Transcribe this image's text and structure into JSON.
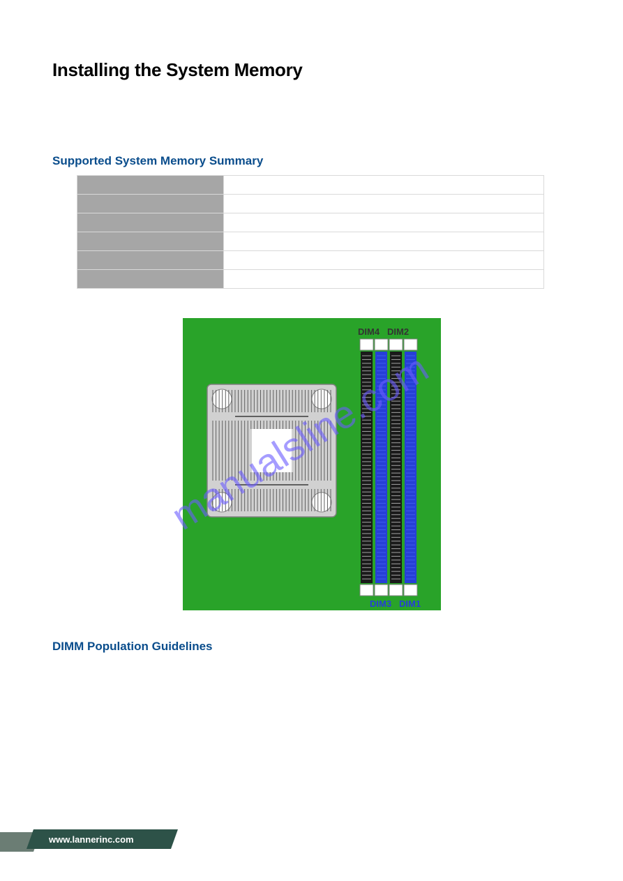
{
  "page": {
    "title": "Installing the System Memory"
  },
  "sections": {
    "summary_title": "Supported System Memory Summary",
    "guidelines_title": "DIMM Population Guidelines"
  },
  "title_colors": {
    "summary": "#0a4d8c",
    "guidelines": "#0a4d8c"
  },
  "summary_table": {
    "rows": [
      {
        "label": "",
        "value": ""
      },
      {
        "label": "",
        "value": ""
      },
      {
        "label": "",
        "value": ""
      },
      {
        "label": "",
        "value": ""
      },
      {
        "label": "",
        "value": ""
      },
      {
        "label": "",
        "value": ""
      }
    ],
    "label_bg": "#a6a6a6",
    "value_bg": "#ffffff",
    "border_color": "#d9d9d9"
  },
  "diagram": {
    "board_bg": "#29a329",
    "socket": {
      "fill": "#d1d1d1",
      "stroke": "#808080",
      "inner_fill": "#ffffff",
      "hole_fill": "#ffffff",
      "hole_stroke": "#808080",
      "line_color": "#606060"
    },
    "dimm": {
      "black_slot_fill": "#1a1a1a",
      "blue_slot_fill": "#263fd7",
      "pin_color": "#ffffff",
      "blue_pin_color": "#5070ff",
      "tab_fill": "#ffffff",
      "tab_stroke": "#808080"
    },
    "labels": {
      "top_left": "DIM4",
      "top_right": "DIM2",
      "bottom_left": "DIM3",
      "bottom_right": "DIM1",
      "top_color": "#333333",
      "bottom_color": "#263fd7",
      "fontsize": 13,
      "fontweight": 700
    }
  },
  "watermark": {
    "text": "manualsline.com",
    "color": "#6b5cff",
    "opacity": 0.6,
    "fontsize": 56,
    "rotation_deg": -32
  },
  "footer": {
    "url_text": "www.lannerinc.com",
    "text_color": "#ffffff",
    "bg_left": "#6b7d74",
    "bg_main": "#2d5248",
    "fontsize": 13
  }
}
